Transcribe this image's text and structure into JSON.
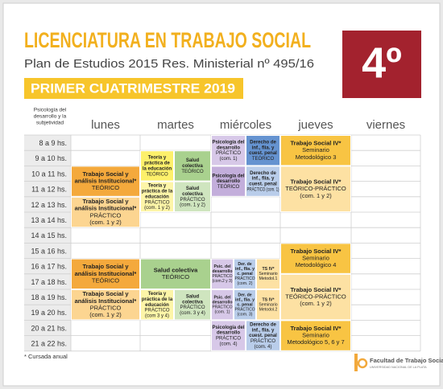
{
  "header": {
    "title": "LICENCIATURA EN TRABAJO SOCIAL",
    "subtitle": "Plan de Estudios 2015 Res. Ministerial nº 495/16",
    "banner": "PRIMER CUATRIMESTRE 2019",
    "year": "4º"
  },
  "table": {
    "note": [
      "Psicología del",
      "desarrollo y la",
      "subjetividad"
    ],
    "days": [
      "lunes",
      "martes",
      "miércoles",
      "jueves",
      "viernes"
    ],
    "hours": [
      "8 a 9 hs.",
      "9 a 10 hs.",
      "10 a 11 hs.",
      "11 a 12 hs.",
      "12 a 13 hs.",
      "13 a 14 hs.",
      "14 a 15 hs.",
      "15 a 16 hs.",
      "16 a 17 hs.",
      "17 a 18 hs.",
      "18 a 19 hs.",
      "19 a 20 hs.",
      "20 a 21 hs.",
      "21 a 22 hs."
    ],
    "blocks": [
      {
        "title": [
          "Trabajo Social y",
          "análisis Institucional*"
        ],
        "detail": [
          "TEÓRICO"
        ]
      },
      {
        "title": [
          "Trabajo Social y",
          "análisis Institucional*"
        ],
        "detail": [
          "PRÁCTICO",
          "(com. 1 y 2)"
        ]
      },
      {
        "title": [
          "Trabajo Social y",
          "análisis Institucional*"
        ],
        "detail": [
          "TEÓRICO"
        ]
      },
      {
        "title": [
          "Trabajo Social y",
          "análisis Institucional*"
        ],
        "detail": [
          "PRÁCTICO",
          "(com. 1 y 2)"
        ]
      },
      {
        "title": [
          "Teoría y",
          "práctica de",
          "la educación"
        ],
        "detail": [
          "TEÓRICO"
        ]
      },
      {
        "title": [
          "Salud",
          "colectiva"
        ],
        "detail": [
          "TEÓRICO"
        ]
      },
      {
        "title": [
          "Teoría y",
          "práctica de la",
          "educación"
        ],
        "detail": [
          "PRÁCTICO",
          "(com. 1 y 2)"
        ]
      },
      {
        "title": [
          "Salud",
          "colectiva"
        ],
        "detail": [
          "PRÁCTICO",
          "(com. 1 y 2)"
        ]
      },
      {
        "title": [
          "Salud colectiva"
        ],
        "detail": [
          "TEÓRICO"
        ]
      },
      {
        "title": [
          "Teoría y",
          "práctica de la",
          "educación"
        ],
        "detail": [
          "PRÁCTICO",
          "(com 3 y 4)"
        ]
      },
      {
        "title": [
          "Salud",
          "colectiva"
        ],
        "detail": [
          "PRÁCTICO",
          "(com. 3 y 4)"
        ]
      },
      {
        "title": [
          "Psicología del",
          "desarrollo"
        ],
        "detail": [
          "PRÁCTICO",
          "(com. 1)"
        ]
      },
      {
        "title": [
          "Derecho de",
          "inf., flia. y",
          "cuest. penal"
        ],
        "detail": [
          "TEÓRICO"
        ]
      },
      {
        "title": [
          "Psicología del",
          "desarrollo"
        ],
        "detail": [
          "TEÓRICO"
        ]
      },
      {
        "title": [
          "Derecho de",
          "inf., flia. y",
          "cuest. penal"
        ],
        "detail": [
          "PRÁCTICO (com. 1)"
        ]
      },
      {
        "title": [
          "Psic. del",
          "desarrollo"
        ],
        "detail": [
          "PRÁCTICO",
          "(com.2 y 3)"
        ]
      },
      {
        "title": [
          "Der. de",
          "inf., flia. y",
          "c. penal"
        ],
        "detail": [
          "PRÁCTICO",
          "(com. 2)"
        ]
      },
      {
        "title": [
          "TS IV*"
        ],
        "detail": [
          "Seminario",
          "Metodol.1"
        ]
      },
      {
        "title": [
          "Psic. del",
          "desarrollo"
        ],
        "detail": [
          "PRÁCTICO",
          "(com. 1)"
        ]
      },
      {
        "title": [
          "Der. de",
          "inf., flia. y",
          "c. penal"
        ],
        "detail": [
          "PRÁCTICO",
          "(com. 3)"
        ]
      },
      {
        "title": [
          "TS IV*"
        ],
        "detail": [
          "Seminario",
          "Metodol.2"
        ]
      },
      {
        "title": [
          "Psicología del",
          "desarrollo"
        ],
        "detail": [
          "PRÁCTICO",
          "(com. 4)"
        ]
      },
      {
        "title": [
          "Derecho de",
          "inf., flia. y",
          "cuest. penal"
        ],
        "detail": [
          "PRÁCTICO",
          "(com. 4)"
        ]
      },
      {
        "title": [
          "Trabajo Social IV*"
        ],
        "detail": [
          "Seminario",
          "Metodológico 3"
        ]
      },
      {
        "title": [
          "Trabajo Social IV*"
        ],
        "detail": [
          "TEÓRICO-PRÁCTICO",
          "(com. 1 y 2)"
        ]
      },
      {
        "title": [
          "Trabajo Social IV*"
        ],
        "detail": [
          "Seminario",
          "Metodológico 4"
        ]
      },
      {
        "title": [
          "Trabajo Social IV*"
        ],
        "detail": [
          "TEÓRICO-PRÁCTICO",
          "(com. 1 y 2)"
        ]
      },
      {
        "title": [
          "Trabajo Social IV*"
        ],
        "detail": [
          "Seminario",
          "Metodológico 5, 6 y 7"
        ]
      }
    ],
    "footnote": "* Cursada anual"
  },
  "footer": {
    "faculty": "Facultad de Trabajo Social",
    "university": "UNIVERSIDAD NACIONAL DE LA PLATA"
  }
}
